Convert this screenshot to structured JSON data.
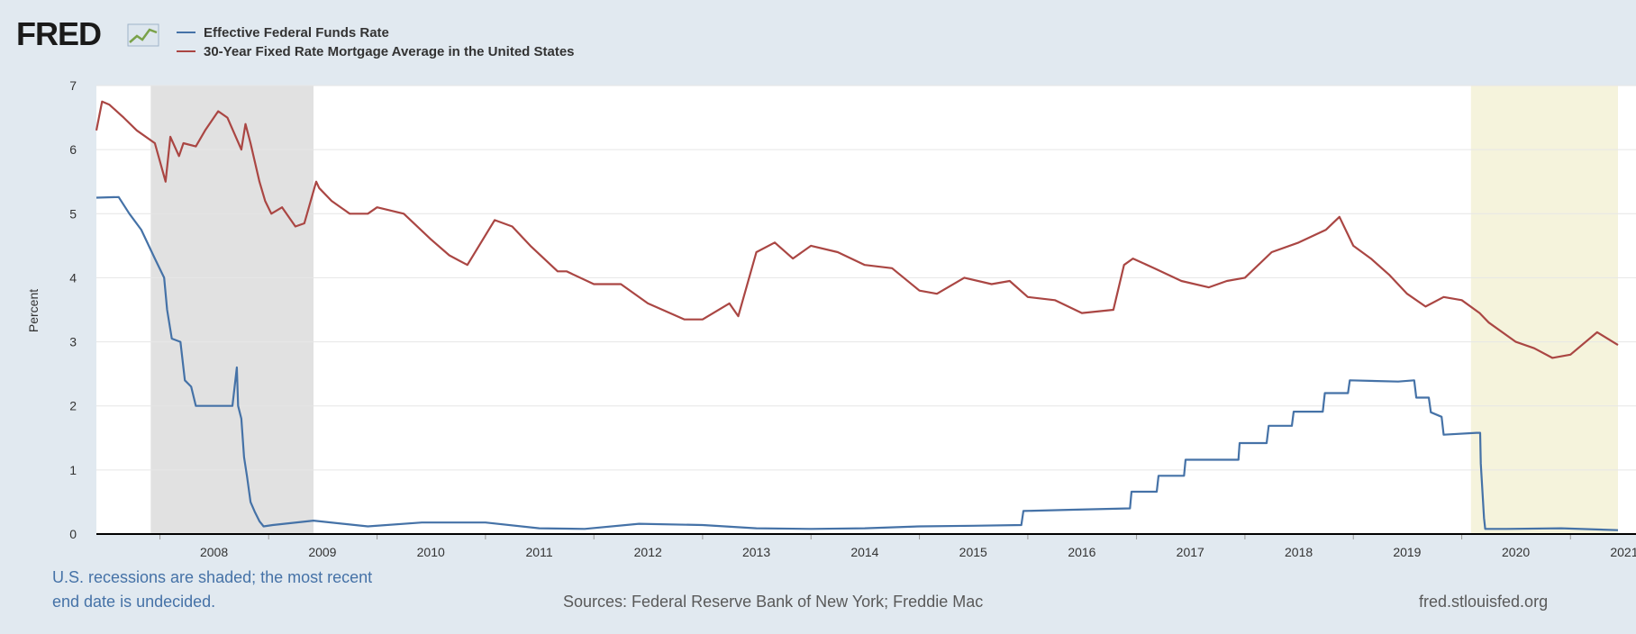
{
  "brand": {
    "logo_text": "FRED"
  },
  "chart_data": {
    "type": "line",
    "ylabel": "Percent",
    "xlabel": "",
    "ylim": [
      0,
      7
    ],
    "xlim": [
      "2007-06-01",
      "2021-06-10"
    ],
    "yticks": [
      0,
      1,
      2,
      3,
      4,
      5,
      6,
      7
    ],
    "xticks": [
      "2008",
      "2009",
      "2010",
      "2011",
      "2012",
      "2013",
      "2014",
      "2015",
      "2016",
      "2017",
      "2018",
      "2019",
      "2020",
      "2021"
    ],
    "grid": true,
    "legend_position": "top-left",
    "recessions": [
      {
        "start": "2007-12-01",
        "end": "2009-06-01",
        "color": "#e1e1e1"
      },
      {
        "start": "2020-02-01",
        "end": "2021-06-10",
        "color": "#f5f3dc"
      }
    ],
    "series": [
      {
        "name": "Effective Federal Funds Rate",
        "color": "#4572a7",
        "x": [
          "2007-06-01",
          "2007-08-15",
          "2007-09-20",
          "2007-10-30",
          "2007-12-15",
          "2008-01-15",
          "2008-01-25",
          "2008-02-10",
          "2008-03-10",
          "2008-03-25",
          "2008-04-15",
          "2008-05-01",
          "2008-06-01",
          "2008-07-01",
          "2008-08-01",
          "2008-09-01",
          "2008-09-16",
          "2008-09-20",
          "2008-10-01",
          "2008-10-10",
          "2008-10-20",
          "2008-11-01",
          "2008-11-15",
          "2008-12-01",
          "2008-12-15",
          "2009-01-15",
          "2009-06-01",
          "2009-12-01",
          "2010-06-01",
          "2011-01-01",
          "2011-07-01",
          "2011-12-01",
          "2012-06-01",
          "2013-01-01",
          "2013-07-01",
          "2014-01-01",
          "2014-07-01",
          "2015-01-01",
          "2015-07-01",
          "2015-12-10",
          "2015-12-17",
          "2016-06-01",
          "2016-12-10",
          "2016-12-15",
          "2017-03-10",
          "2017-03-16",
          "2017-06-10",
          "2017-06-15",
          "2017-12-10",
          "2017-12-14",
          "2018-03-15",
          "2018-03-22",
          "2018-06-08",
          "2018-06-14",
          "2018-09-20",
          "2018-09-27",
          "2018-12-14",
          "2018-12-20",
          "2019-06-01",
          "2019-07-25",
          "2019-08-01",
          "2019-09-12",
          "2019-09-19",
          "2019-10-25",
          "2019-11-01",
          "2020-02-20",
          "2020-03-03",
          "2020-03-05",
          "2020-03-16",
          "2020-03-20",
          "2020-06-01",
          "2020-12-01",
          "2021-06-10"
        ],
        "values": [
          5.25,
          5.26,
          5.0,
          4.75,
          4.3,
          4.0,
          3.5,
          3.05,
          3.0,
          2.4,
          2.3,
          2.0,
          2.0,
          2.0,
          2.0,
          2.0,
          2.6,
          2.0,
          1.8,
          1.2,
          0.9,
          0.5,
          0.35,
          0.2,
          0.12,
          0.14,
          0.21,
          0.12,
          0.18,
          0.18,
          0.09,
          0.08,
          0.16,
          0.14,
          0.09,
          0.08,
          0.09,
          0.12,
          0.13,
          0.14,
          0.36,
          0.38,
          0.4,
          0.66,
          0.66,
          0.91,
          0.91,
          1.16,
          1.16,
          1.42,
          1.42,
          1.69,
          1.69,
          1.91,
          1.91,
          2.2,
          2.2,
          2.4,
          2.38,
          2.4,
          2.13,
          2.13,
          1.9,
          1.83,
          1.55,
          1.58,
          1.58,
          1.1,
          0.25,
          0.08,
          0.08,
          0.09,
          0.06
        ]
      },
      {
        "name": "30-Year Fixed Rate Mortgage Average in the United States",
        "color": "#aa4643",
        "x": [
          "2007-06-01",
          "2007-06-20",
          "2007-07-15",
          "2007-09-01",
          "2007-10-15",
          "2007-12-15",
          "2008-01-20",
          "2008-02-05",
          "2008-03-05",
          "2008-03-20",
          "2008-05-01",
          "2008-06-01",
          "2008-07-15",
          "2008-08-15",
          "2008-10-01",
          "2008-10-15",
          "2008-11-01",
          "2008-12-01",
          "2008-12-20",
          "2009-01-10",
          "2009-02-15",
          "2009-04-01",
          "2009-05-01",
          "2009-06-10",
          "2009-06-20",
          "2009-08-01",
          "2009-10-01",
          "2009-12-01",
          "2010-01-01",
          "2010-04-01",
          "2010-07-01",
          "2010-09-01",
          "2010-11-01",
          "2011-02-01",
          "2011-04-01",
          "2011-06-01",
          "2011-09-01",
          "2011-10-01",
          "2012-01-01",
          "2012-04-01",
          "2012-07-01",
          "2012-11-01",
          "2013-01-01",
          "2013-04-01",
          "2013-05-01",
          "2013-07-01",
          "2013-09-01",
          "2013-11-01",
          "2014-01-01",
          "2014-04-01",
          "2014-07-01",
          "2014-10-01",
          "2015-01-01",
          "2015-03-01",
          "2015-06-01",
          "2015-09-01",
          "2015-11-01",
          "2016-01-01",
          "2016-04-01",
          "2016-07-01",
          "2016-10-15",
          "2016-11-20",
          "2016-12-20",
          "2017-03-01",
          "2017-06-01",
          "2017-09-01",
          "2017-11-01",
          "2018-01-01",
          "2018-04-01",
          "2018-07-01",
          "2018-10-01",
          "2018-11-15",
          "2019-01-01",
          "2019-03-01",
          "2019-05-01",
          "2019-07-01",
          "2019-09-01",
          "2019-11-01",
          "2020-01-01",
          "2020-03-01",
          "2020-04-01",
          "2020-07-01",
          "2020-09-01",
          "2020-11-01",
          "2021-01-01",
          "2021-04-01",
          "2021-06-10"
        ],
        "values": [
          6.3,
          6.75,
          6.7,
          6.5,
          6.3,
          6.1,
          5.5,
          6.2,
          5.9,
          6.1,
          6.05,
          6.3,
          6.6,
          6.5,
          6.0,
          6.4,
          6.1,
          5.5,
          5.2,
          5.0,
          5.1,
          4.8,
          4.85,
          5.5,
          5.4,
          5.2,
          5.0,
          5.0,
          5.1,
          5.0,
          4.6,
          4.35,
          4.2,
          4.9,
          4.8,
          4.5,
          4.1,
          4.1,
          3.9,
          3.9,
          3.6,
          3.35,
          3.35,
          3.6,
          3.4,
          4.4,
          4.55,
          4.3,
          4.5,
          4.4,
          4.2,
          4.15,
          3.8,
          3.75,
          4.0,
          3.9,
          3.95,
          3.7,
          3.65,
          3.45,
          3.5,
          4.2,
          4.3,
          4.15,
          3.95,
          3.85,
          3.95,
          4.0,
          4.4,
          4.55,
          4.75,
          4.95,
          4.5,
          4.3,
          4.05,
          3.75,
          3.55,
          3.7,
          3.65,
          3.45,
          3.3,
          3.0,
          2.9,
          2.75,
          2.8,
          3.15,
          2.95
        ]
      }
    ]
  },
  "footer": {
    "recession_note_line1": "U.S. recessions are shaded; the most recent",
    "recession_note_line2": "end date is undecided.",
    "sources": "Sources: Federal Reserve Bank of New York; Freddie Mac",
    "site": "fred.stlouisfed.org"
  },
  "colors": {
    "page_bg": "#e1e9f0",
    "plot_bg": "#ffffff",
    "grid": "#e6e6e6",
    "note_blue": "#4572a7",
    "text_gray": "#595959"
  }
}
